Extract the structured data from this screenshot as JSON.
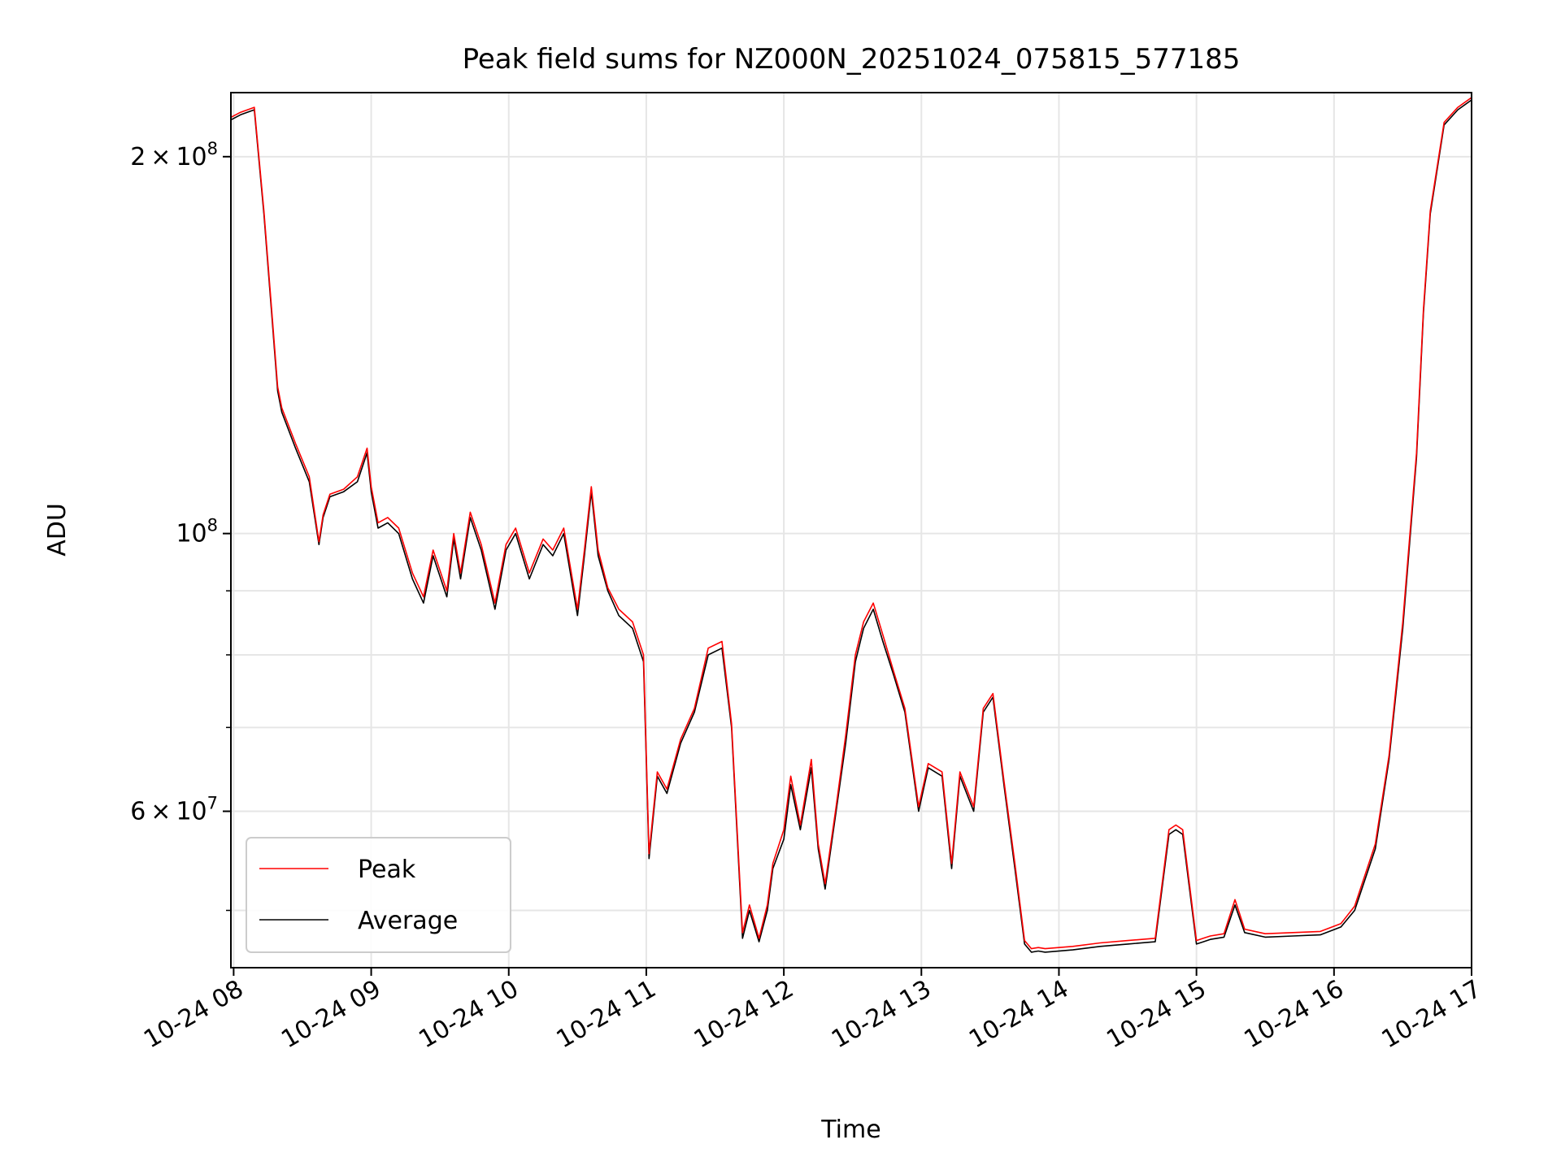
{
  "chart_data": {
    "type": "line",
    "title": "Peak field sums for NZ000N_20251024_075815_577185",
    "xlabel": "Time",
    "ylabel": "ADU",
    "yscale": "log",
    "xlim": [
      7.98,
      17.0
    ],
    "ylim": [
      45000000,
      225000000
    ],
    "x_ticks": [
      8,
      9,
      10,
      11,
      12,
      13,
      14,
      15,
      16,
      17
    ],
    "x_tick_labels": [
      "10-24 08",
      "10-24 09",
      "10-24 10",
      "10-24 11",
      "10-24 12",
      "10-24 13",
      "10-24 14",
      "10-24 15",
      "10-24 16",
      "10-24 17"
    ],
    "y_major_ticks": [
      {
        "value": 60000000,
        "base": "6",
        "exp": "7"
      },
      {
        "value": 100000000,
        "base": "",
        "exp": "8"
      },
      {
        "value": 200000000,
        "base": "2",
        "exp": "8"
      }
    ],
    "y_minor_ticks": [
      50000000,
      70000000,
      80000000,
      90000000
    ],
    "grid": true,
    "legend": {
      "position": "lower-left",
      "entries": [
        "Peak",
        "Average"
      ]
    },
    "series": [
      {
        "name": "Average",
        "color": "#000000",
        "x": [
          7.98,
          8.05,
          8.15,
          8.22,
          8.28,
          8.32,
          8.35,
          8.45,
          8.55,
          8.62,
          8.65,
          8.7,
          8.8,
          8.9,
          8.97,
          9.0,
          9.05,
          9.12,
          9.2,
          9.3,
          9.38,
          9.45,
          9.55,
          9.6,
          9.65,
          9.72,
          9.8,
          9.9,
          9.98,
          10.05,
          10.15,
          10.25,
          10.32,
          10.4,
          10.5,
          10.55,
          10.6,
          10.65,
          10.72,
          10.8,
          10.9,
          10.98,
          11.02,
          11.08,
          11.15,
          11.25,
          11.35,
          11.45,
          11.55,
          11.62,
          11.7,
          11.75,
          11.82,
          11.88,
          11.92,
          12.0,
          12.05,
          12.12,
          12.2,
          12.25,
          12.3,
          12.38,
          12.45,
          12.52,
          12.58,
          12.65,
          12.72,
          12.8,
          12.88,
          12.98,
          13.05,
          13.15,
          13.22,
          13.28,
          13.38,
          13.45,
          13.52,
          13.6,
          13.68,
          13.75,
          13.8,
          13.85,
          13.9,
          14.1,
          14.3,
          14.5,
          14.7,
          14.8,
          14.85,
          14.9,
          15.0,
          15.05,
          15.1,
          15.2,
          15.28,
          15.35,
          15.5,
          15.7,
          15.9,
          16.05,
          16.15,
          16.3,
          16.4,
          16.5,
          16.6,
          16.65,
          16.7,
          16.8,
          16.9,
          17.0
        ],
        "values": [
          214000000,
          216000000,
          218000000,
          180000000,
          148000000,
          130000000,
          125000000,
          117000000,
          110000000,
          98000000,
          103000000,
          107000000,
          108000000,
          110000000,
          116000000,
          108000000,
          101000000,
          102000000,
          100000000,
          92000000,
          88000000,
          96000000,
          89000000,
          99000000,
          92000000,
          103000000,
          97000000,
          87000000,
          97000000,
          100000000,
          92000000,
          98000000,
          96000000,
          100000000,
          86000000,
          96000000,
          108000000,
          96000000,
          90000000,
          86000000,
          84000000,
          79000000,
          55000000,
          64000000,
          62000000,
          68000000,
          72000000,
          80000000,
          81000000,
          70000000,
          47500000,
          50000000,
          47200000,
          50000000,
          54000000,
          57000000,
          63000000,
          58000000,
          65000000,
          56000000,
          52000000,
          60000000,
          68000000,
          79000000,
          84000000,
          87000000,
          82000000,
          77000000,
          72000000,
          60000000,
          65000000,
          64000000,
          54000000,
          64000000,
          60000000,
          72000000,
          74000000,
          63000000,
          54000000,
          47000000,
          46300000,
          46400000,
          46300000,
          46500000,
          46800000,
          47000000,
          47200000,
          57500000,
          58000000,
          57500000,
          47000000,
          47200000,
          47400000,
          47600000,
          50500000,
          48000000,
          47600000,
          47700000,
          47800000,
          48500000,
          50000000,
          56000000,
          66000000,
          84000000,
          115000000,
          150000000,
          180000000,
          212000000,
          218000000,
          222000000
        ]
      },
      {
        "name": "Peak",
        "color": "#ff0000",
        "x": [
          7.98,
          8.05,
          8.15,
          8.22,
          8.28,
          8.32,
          8.35,
          8.45,
          8.55,
          8.62,
          8.65,
          8.7,
          8.8,
          8.9,
          8.97,
          9.0,
          9.05,
          9.12,
          9.2,
          9.3,
          9.38,
          9.45,
          9.55,
          9.6,
          9.65,
          9.72,
          9.8,
          9.9,
          9.98,
          10.05,
          10.15,
          10.25,
          10.32,
          10.4,
          10.5,
          10.55,
          10.6,
          10.65,
          10.72,
          10.8,
          10.9,
          10.98,
          11.02,
          11.08,
          11.15,
          11.25,
          11.35,
          11.45,
          11.55,
          11.62,
          11.7,
          11.75,
          11.82,
          11.88,
          11.92,
          12.0,
          12.05,
          12.12,
          12.2,
          12.25,
          12.3,
          12.38,
          12.45,
          12.52,
          12.58,
          12.65,
          12.72,
          12.8,
          12.88,
          12.98,
          13.05,
          13.15,
          13.22,
          13.28,
          13.38,
          13.45,
          13.52,
          13.6,
          13.68,
          13.75,
          13.8,
          13.85,
          13.9,
          14.1,
          14.3,
          14.5,
          14.7,
          14.8,
          14.85,
          14.9,
          15.0,
          15.05,
          15.1,
          15.2,
          15.28,
          15.35,
          15.5,
          15.7,
          15.9,
          16.05,
          16.15,
          16.3,
          16.4,
          16.5,
          16.6,
          16.65,
          16.7,
          16.8,
          16.9,
          17.0
        ],
        "values": [
          215000000,
          217000000,
          219000000,
          181000000,
          149000000,
          131000000,
          126000000,
          118000000,
          111000000,
          98500000,
          103500000,
          107500000,
          108500000,
          111000000,
          117000000,
          109000000,
          102000000,
          103000000,
          101000000,
          93000000,
          89000000,
          97000000,
          90000000,
          100000000,
          93000000,
          104000000,
          98000000,
          88000000,
          98000000,
          101000000,
          93000000,
          99000000,
          97000000,
          101000000,
          87000000,
          97000000,
          109000000,
          97000000,
          90500000,
          87000000,
          85000000,
          80000000,
          55500000,
          64500000,
          62500000,
          68500000,
          72500000,
          81000000,
          82000000,
          70500000,
          48000000,
          50500000,
          47500000,
          50500000,
          54500000,
          58000000,
          64000000,
          58500000,
          66000000,
          56500000,
          52500000,
          60500000,
          69000000,
          80000000,
          85000000,
          88000000,
          83000000,
          77500000,
          72500000,
          60500000,
          65500000,
          64500000,
          54500000,
          64500000,
          60500000,
          72500000,
          74500000,
          63500000,
          54500000,
          47300000,
          46600000,
          46700000,
          46600000,
          46800000,
          47100000,
          47300000,
          47500000,
          58000000,
          58500000,
          58000000,
          47300000,
          47500000,
          47700000,
          47900000,
          51000000,
          48300000,
          47900000,
          48000000,
          48100000,
          48800000,
          50400000,
          56500000,
          66500000,
          85000000,
          116000000,
          151000000,
          181000000,
          213000000,
          219000000,
          223000000
        ]
      }
    ]
  }
}
